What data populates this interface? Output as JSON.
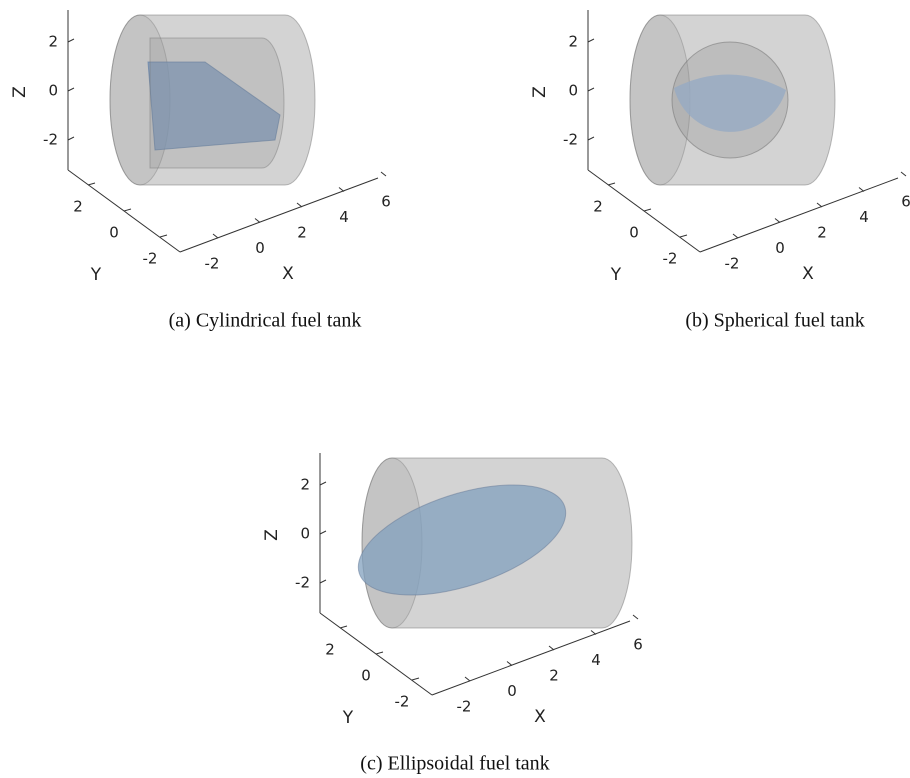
{
  "panels": [
    {
      "caption": "(a) Cylindrical fuel tank",
      "x_label": "X",
      "y_label": "Y",
      "z_label": "Z",
      "xticks": [
        -2,
        0,
        2,
        4,
        6
      ],
      "yticks": [
        2,
        0,
        -2
      ],
      "zticks": [
        2,
        0,
        -2
      ]
    },
    {
      "caption": "(b) Spherical fuel tank",
      "x_label": "X",
      "y_label": "Y",
      "z_label": "Z",
      "xticks": [
        -2,
        0,
        2,
        4,
        6
      ],
      "yticks": [
        2,
        0,
        -2
      ],
      "zticks": [
        2,
        0,
        -2
      ]
    },
    {
      "caption": "(c) Ellipsoidal fuel tank",
      "x_label": "X",
      "y_label": "Y",
      "z_label": "Z",
      "xticks": [
        -2,
        0,
        2,
        4,
        6
      ],
      "yticks": [
        2,
        0,
        -2
      ],
      "zticks": [
        2,
        0,
        -2
      ]
    }
  ]
}
